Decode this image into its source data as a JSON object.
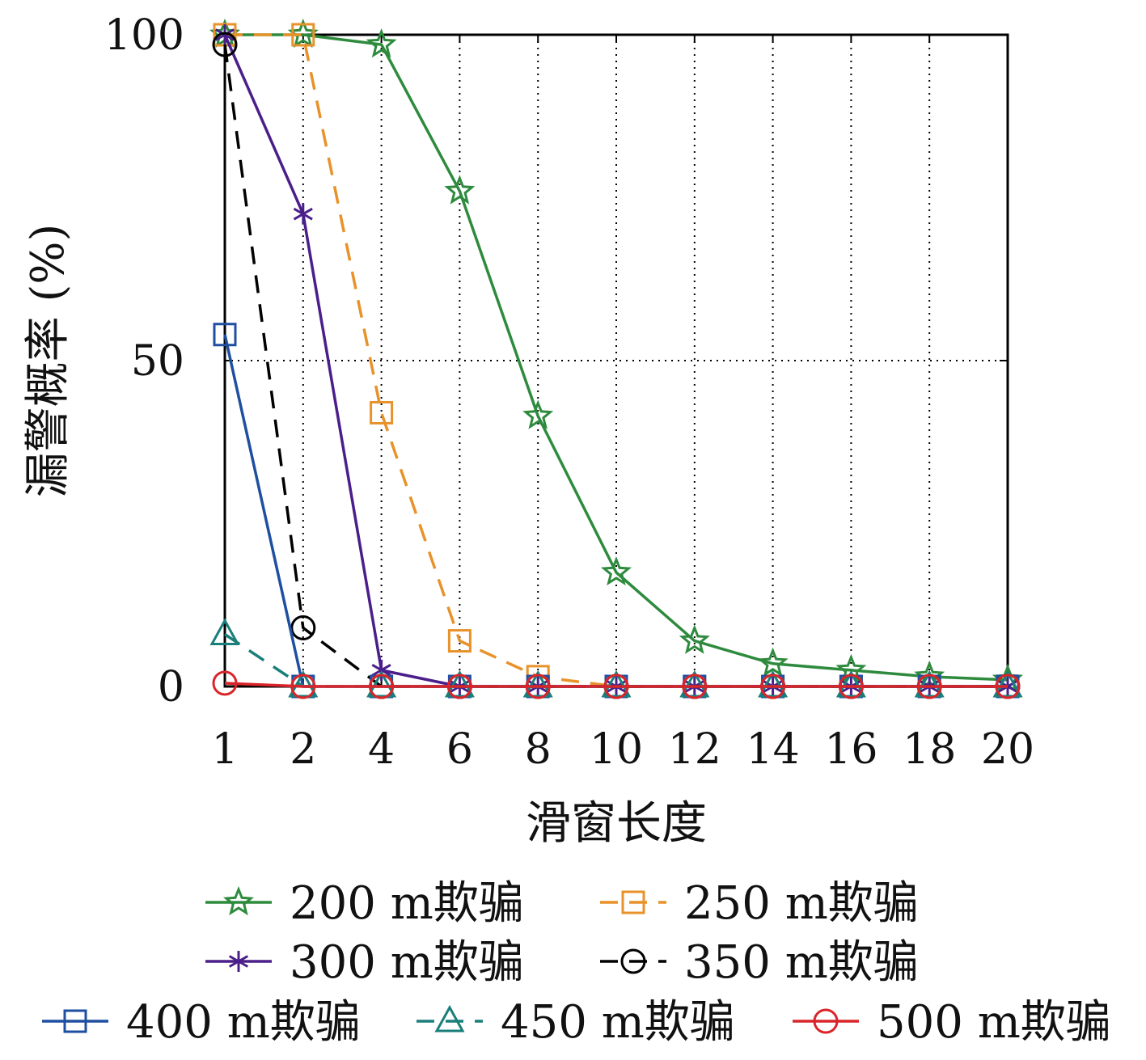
{
  "chart_data": {
    "type": "line",
    "title": "",
    "xlabel": "滑窗长度",
    "ylabel": "漏警概率 (%)",
    "categories": [
      "1",
      "2",
      "4",
      "6",
      "8",
      "10",
      "12",
      "14",
      "16",
      "18",
      "20"
    ],
    "ylim": [
      0,
      100
    ],
    "yticks": [
      "0",
      "50",
      "100"
    ],
    "grid": "dotted",
    "legend_position": "bottom",
    "series": [
      {
        "name": "200 m欺骗",
        "color": "#2e8b3e",
        "dash": "solid",
        "marker": "star",
        "values": [
          100,
          100,
          98.5,
          76,
          41.5,
          17.5,
          7,
          3.5,
          2.5,
          1.5,
          1
        ]
      },
      {
        "name": "250 m欺骗",
        "color": "#e8922a",
        "dash": "dashed",
        "marker": "square",
        "values": [
          100,
          100,
          42,
          7,
          1.5,
          0,
          0,
          0,
          0,
          0,
          0
        ]
      },
      {
        "name": "300 m欺骗",
        "color": "#4b1f8a",
        "dash": "solid",
        "marker": "asterisk",
        "values": [
          100,
          72.5,
          2.5,
          0,
          0,
          0,
          0,
          0,
          0,
          0,
          0
        ]
      },
      {
        "name": "350 m欺骗",
        "color": "#000000",
        "dash": "dashed",
        "marker": "circle",
        "values": [
          98.5,
          9,
          0,
          0,
          0,
          0,
          0,
          0,
          0,
          0,
          0
        ]
      },
      {
        "name": "400 m欺骗",
        "color": "#1f4fa0",
        "dash": "solid",
        "marker": "square",
        "values": [
          54,
          0,
          0,
          0,
          0,
          0,
          0,
          0,
          0,
          0,
          0
        ]
      },
      {
        "name": "450 m欺骗",
        "color": "#1a7f7a",
        "dash": "dashed",
        "marker": "triangle",
        "values": [
          8,
          0,
          0,
          0,
          0,
          0,
          0,
          0,
          0,
          0,
          0
        ]
      },
      {
        "name": "500 m欺骗",
        "color": "#d9252a",
        "dash": "solid",
        "marker": "circle",
        "values": [
          0.5,
          0,
          0,
          0,
          0,
          0,
          0,
          0,
          0,
          0,
          0
        ]
      }
    ]
  }
}
